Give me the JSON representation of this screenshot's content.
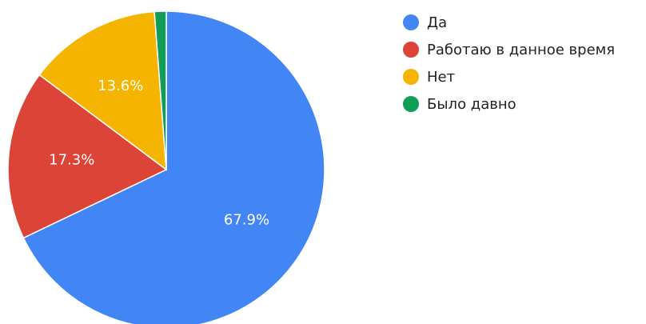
{
  "chart_data": {
    "type": "pie",
    "slices": [
      {
        "label": "Да",
        "value": 67.9,
        "value_label": "67.9%",
        "color": "#4285F4"
      },
      {
        "label": "Работаю в данное время",
        "value": 17.3,
        "value_label": "17.3%",
        "color": "#DB4437"
      },
      {
        "label": "Нет",
        "value": 13.6,
        "value_label": "13.6%",
        "color": "#F4B400"
      },
      {
        "label": "Было давно",
        "value": 1.2,
        "value_label": "",
        "color": "#0F9D58"
      }
    ],
    "legend_position": "right",
    "start_angle": "top",
    "direction": "clockwise"
  }
}
